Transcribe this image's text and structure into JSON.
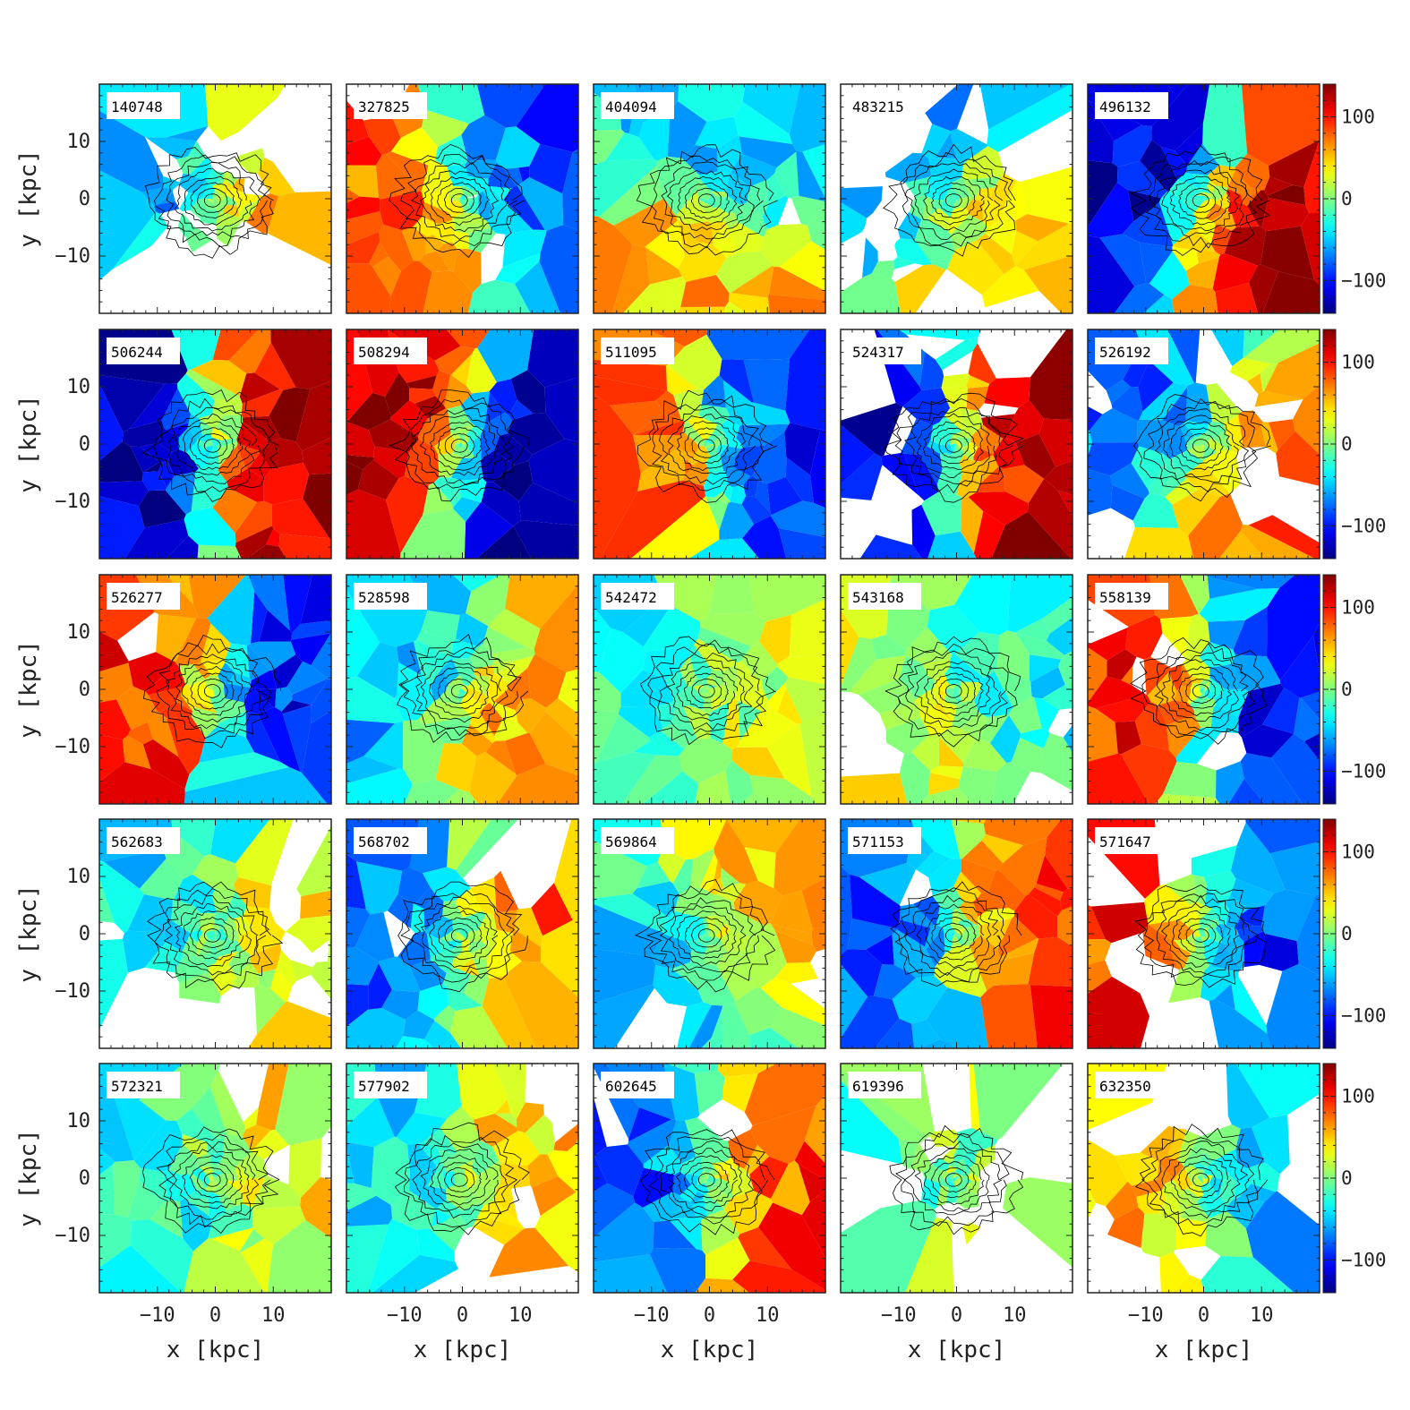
{
  "chart_data": {
    "type": "heatmap",
    "description_kind": "grid of Voronoi-binned stellar velocity maps with surface-brightness contours",
    "rows": 5,
    "cols": 5,
    "xlabel": "x [kpc]",
    "ylabel": "y [kpc]",
    "xlim": [
      -20,
      20
    ],
    "ylim": [
      -20,
      20
    ],
    "x_ticks": [
      -10,
      0,
      10
    ],
    "y_ticks": [
      10,
      0,
      -10
    ],
    "x_tick_labels": [
      "−10",
      "0",
      "10"
    ],
    "y_tick_labels": [
      "10",
      "0",
      "−10"
    ],
    "colorbar": {
      "min": -140,
      "max": 140,
      "ticks": [
        100,
        0,
        -100
      ],
      "tick_labels": [
        "100",
        "0",
        "−100"
      ],
      "colormap": "jet"
    },
    "panels": [
      {
        "id": "140748",
        "kind": "rot",
        "amp": 0.45,
        "pa": 0,
        "extent": 0.6,
        "fill": 0.55
      },
      {
        "id": "327825",
        "kind": "rot",
        "amp": -0.55,
        "pa": 20,
        "extent": 1.0,
        "fill": 0.95
      },
      {
        "id": "404094",
        "kind": "rot",
        "amp": -0.35,
        "pa": 70,
        "extent": 1.0,
        "fill": 0.97
      },
      {
        "id": "483215",
        "kind": "rot",
        "amp": 0.35,
        "pa": -40,
        "extent": 0.95,
        "fill": 0.75
      },
      {
        "id": "496132",
        "kind": "rot",
        "amp": 0.85,
        "pa": -20,
        "extent": 1.0,
        "fill": 1.0
      },
      {
        "id": "506244",
        "kind": "rot",
        "amp": 0.9,
        "pa": 0,
        "extent": 1.0,
        "fill": 1.0
      },
      {
        "id": "508294",
        "kind": "rot",
        "amp": -0.95,
        "pa": -15,
        "extent": 1.0,
        "fill": 1.0
      },
      {
        "id": "511095",
        "kind": "rot",
        "amp": -0.7,
        "pa": 10,
        "extent": 1.0,
        "fill": 1.0
      },
      {
        "id": "524317",
        "kind": "rot",
        "amp": 0.85,
        "pa": 0,
        "extent": 1.0,
        "fill": 0.9
      },
      {
        "id": "526192",
        "kind": "rot",
        "amp": 0.5,
        "pa": -30,
        "extent": 1.0,
        "fill": 0.8
      },
      {
        "id": "526277",
        "kind": "rot",
        "amp": -0.7,
        "pa": 0,
        "extent": 1.0,
        "fill": 0.97
      },
      {
        "id": "528598",
        "kind": "rot",
        "amp": 0.4,
        "pa": -20,
        "extent": 1.0,
        "fill": 1.0
      },
      {
        "id": "542472",
        "kind": "rot",
        "amp": 0.15,
        "pa": 0,
        "extent": 1.0,
        "fill": 0.97
      },
      {
        "id": "543168",
        "kind": "rot",
        "amp": -0.2,
        "pa": 20,
        "extent": 1.0,
        "fill": 0.95
      },
      {
        "id": "558139",
        "kind": "rot",
        "amp": -0.7,
        "pa": 0,
        "extent": 1.0,
        "fill": 0.92
      },
      {
        "id": "562683",
        "kind": "rot",
        "amp": 0.25,
        "pa": -20,
        "extent": 0.95,
        "fill": 0.7
      },
      {
        "id": "568702",
        "kind": "rot",
        "amp": 0.5,
        "pa": 0,
        "extent": 0.95,
        "fill": 0.75
      },
      {
        "id": "569864",
        "kind": "rot",
        "amp": 0.3,
        "pa": 30,
        "extent": 1.0,
        "fill": 0.92
      },
      {
        "id": "571153",
        "kind": "rot",
        "amp": 0.6,
        "pa": 0,
        "extent": 1.0,
        "fill": 0.95
      },
      {
        "id": "571647",
        "kind": "rot",
        "amp": -0.65,
        "pa": 0,
        "extent": 1.0,
        "fill": 0.85
      },
      {
        "id": "572321",
        "kind": "rot",
        "amp": 0.25,
        "pa": 10,
        "extent": 1.0,
        "fill": 0.85
      },
      {
        "id": "577902",
        "kind": "rot",
        "amp": 0.3,
        "pa": 0,
        "extent": 1.0,
        "fill": 0.8
      },
      {
        "id": "602645",
        "kind": "rot",
        "amp": 0.6,
        "pa": 0,
        "extent": 1.0,
        "fill": 0.85
      },
      {
        "id": "619396",
        "kind": "rot",
        "amp": 0.1,
        "pa": 0,
        "extent": 0.55,
        "fill": 0.6
      },
      {
        "id": "632350",
        "kind": "rot",
        "amp": -0.4,
        "pa": 0,
        "extent": 1.0,
        "fill": 0.75
      }
    ]
  }
}
